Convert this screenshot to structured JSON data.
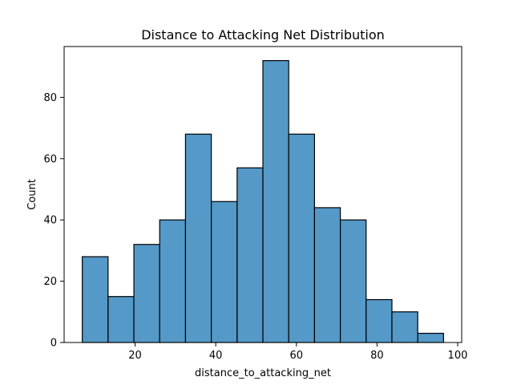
{
  "chart_data": {
    "type": "bar",
    "title": "Distance to Attacking Net Distribution",
    "xlabel": "distance_to_attacking_net",
    "ylabel": "Count",
    "bins": [
      {
        "start": 6.9,
        "end": 13.3,
        "count": 28
      },
      {
        "start": 13.3,
        "end": 19.7,
        "count": 15
      },
      {
        "start": 19.7,
        "end": 26.1,
        "count": 32
      },
      {
        "start": 26.1,
        "end": 32.5,
        "count": 40
      },
      {
        "start": 32.5,
        "end": 38.9,
        "count": 68
      },
      {
        "start": 38.9,
        "end": 45.3,
        "count": 46
      },
      {
        "start": 45.3,
        "end": 51.7,
        "count": 57
      },
      {
        "start": 51.7,
        "end": 58.1,
        "count": 92
      },
      {
        "start": 58.1,
        "end": 64.5,
        "count": 68
      },
      {
        "start": 64.5,
        "end": 70.9,
        "count": 44
      },
      {
        "start": 70.9,
        "end": 77.3,
        "count": 40
      },
      {
        "start": 77.3,
        "end": 83.7,
        "count": 14
      },
      {
        "start": 83.7,
        "end": 90.1,
        "count": 10
      },
      {
        "start": 90.1,
        "end": 96.5,
        "count": 3
      }
    ],
    "xlim": [
      2.4,
      101.0
    ],
    "ylim": [
      0,
      96.6
    ],
    "xticks": [
      20,
      40,
      60,
      80,
      100
    ],
    "yticks": [
      0,
      20,
      40,
      60,
      80
    ],
    "grid": false,
    "colors": {
      "bar_fill": "#5499c7",
      "bar_edge": "#000000",
      "axis": "#000000",
      "background": "#ffffff"
    }
  }
}
